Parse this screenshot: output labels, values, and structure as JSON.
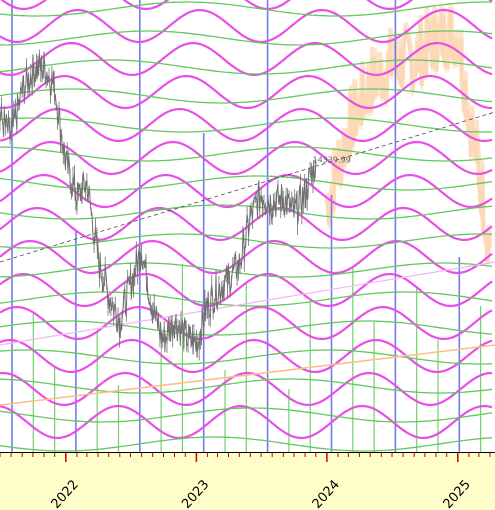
{
  "chart_data": {
    "type": "line",
    "title": "",
    "xlabel": "",
    "ylabel": "",
    "x_ticks": [
      {
        "label": "2022",
        "date": "2022-01-01"
      },
      {
        "label": "2023",
        "date": "2023-01-01"
      },
      {
        "label": "2024",
        "date": "2024-01-01"
      },
      {
        "label": "2025",
        "date": "2025-01-01"
      }
    ],
    "xlim": [
      "2021-07-01",
      "2025-04-15"
    ],
    "ylim": [
      9000,
      17500
    ],
    "annotation": {
      "label": "14339.99",
      "date": "2023-12-31",
      "value": 14339.99
    },
    "series": [
      {
        "role": "price",
        "values": [
          [
            "2021-07-01",
            15200
          ],
          [
            "2021-08-01",
            14800
          ],
          [
            "2021-09-01",
            15700
          ],
          [
            "2021-10-01",
            16100
          ],
          [
            "2021-11-01",
            16200
          ],
          [
            "2021-12-01",
            15800
          ],
          [
            "2022-01-01",
            14300
          ],
          [
            "2022-02-01",
            13600
          ],
          [
            "2022-03-01",
            13900
          ],
          [
            "2022-04-01",
            12400
          ],
          [
            "2022-05-01",
            11700
          ],
          [
            "2022-06-01",
            11200
          ],
          [
            "2022-07-01",
            11900
          ],
          [
            "2022-08-01",
            12600
          ],
          [
            "2022-09-01",
            11400
          ],
          [
            "2022-10-01",
            10800
          ],
          [
            "2022-11-01",
            11200
          ],
          [
            "2022-12-01",
            10900
          ],
          [
            "2023-01-01",
            10700
          ],
          [
            "2023-02-01",
            11500
          ],
          [
            "2023-03-01",
            11800
          ],
          [
            "2023-04-01",
            12000
          ],
          [
            "2023-05-01",
            12300
          ],
          [
            "2023-06-01",
            13200
          ],
          [
            "2023-07-01",
            13700
          ],
          [
            "2023-08-01",
            13500
          ],
          [
            "2023-09-01",
            13600
          ],
          [
            "2023-10-01",
            13300
          ],
          [
            "2023-11-01",
            13700
          ],
          [
            "2023-12-01",
            14300
          ]
        ]
      },
      {
        "role": "projection",
        "values": [
          [
            "2024-01-01",
            13500
          ],
          [
            "2024-03-01",
            15000
          ],
          [
            "2024-05-01",
            15900
          ],
          [
            "2024-07-01",
            16300
          ],
          [
            "2024-09-01",
            16400
          ],
          [
            "2024-11-01",
            16800
          ],
          [
            "2025-01-01",
            16900
          ],
          [
            "2025-02-01",
            15400
          ],
          [
            "2025-03-01",
            14200
          ],
          [
            "2025-04-01",
            12700
          ]
        ]
      }
    ],
    "colors": {
      "price": "#707070",
      "projection": "#fcbf8a",
      "wave_magenta": "#e84ee8",
      "wave_green": "#63c85e",
      "vertical_blue": "#6f7fe6",
      "vertical_green": "#71d26c",
      "axis_band": "#fffec8",
      "tick_red": "#cc0000",
      "trend_dash": "#4a4a4a"
    },
    "grid": false
  }
}
